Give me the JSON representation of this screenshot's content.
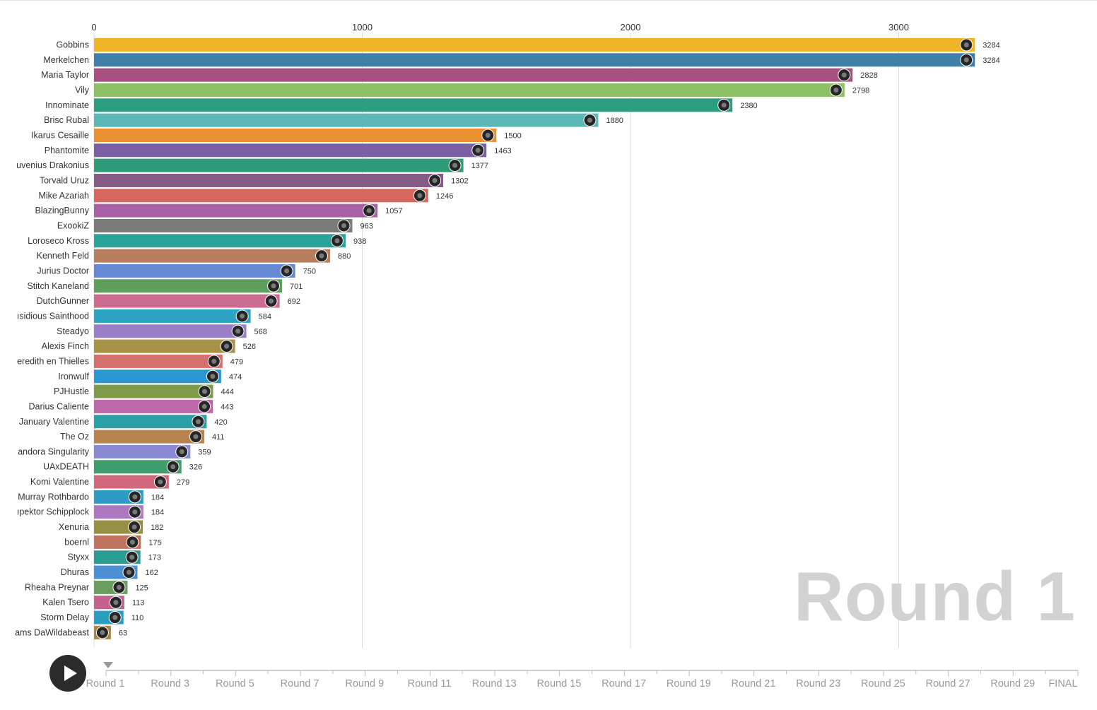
{
  "chart_data": {
    "type": "bar",
    "orientation": "horizontal",
    "x_ticks": [
      0,
      1000,
      2000,
      3000
    ],
    "xlim": [
      0,
      3600
    ],
    "grid": true,
    "current_round": "Round 1",
    "categories": [
      "Gobbins",
      "Merkelchen",
      "Maria Taylor",
      "Vily",
      "Innominate",
      "Brisc Rubal",
      "Ikarus Cesaille",
      "Phantomite",
      "uvenius Drakonius",
      "Torvald Uruz",
      "Mike Azariah",
      "BlazingBunny",
      "ExookiZ",
      "Loroseco Kross",
      "Kenneth Feld",
      "Jurius Doctor",
      "Stitch Kaneland",
      "DutchGunner",
      "ısidious Sainthood",
      "Steadyo",
      "Alexis Finch",
      "eredith en Thielles",
      "Ironwulf",
      "PJHustle",
      "Darius Caliente",
      "January Valentine",
      "The Oz",
      "andora Singularity",
      "UAxDEATH",
      "Komi Valentine",
      "Murray Rothbardo",
      "ıpektor Schipplock",
      "Xenuria",
      "boernl",
      "Styxx",
      "Dhuras",
      "Rheaha Preynar",
      "Kalen Tsero",
      "Storm Delay",
      "ams DaWildabeast"
    ],
    "values": [
      3284,
      3284,
      2828,
      2798,
      2380,
      1880,
      1500,
      1463,
      1377,
      1302,
      1246,
      1057,
      963,
      938,
      880,
      750,
      701,
      692,
      584,
      568,
      526,
      479,
      474,
      444,
      443,
      420,
      411,
      359,
      326,
      279,
      184,
      184,
      182,
      175,
      173,
      162,
      125,
      113,
      110,
      63
    ],
    "colors": [
      "#f0b429",
      "#3f7fa8",
      "#a8507f",
      "#8ec065",
      "#2b9e80",
      "#5bb8b4",
      "#e99030",
      "#7b5ea4",
      "#2e9c78",
      "#865c86",
      "#d7675e",
      "#a95fa5",
      "#7b7b7b",
      "#2aa39a",
      "#b87f5e",
      "#6489d2",
      "#5f9f5c",
      "#cd6c91",
      "#2da3c4",
      "#9b7ec8",
      "#a89246",
      "#d4706e",
      "#2a97d0",
      "#7f9a4b",
      "#be67a9",
      "#2a9fa5",
      "#b7834f",
      "#8989d4",
      "#3f9c6c",
      "#d2687d",
      "#2f9bc4",
      "#ad78c0",
      "#978f42",
      "#c1745d",
      "#2a9c92",
      "#4d8fd3",
      "#6b9d5f",
      "#c4628f",
      "#2b9ebf",
      "#a88744"
    ]
  },
  "timeline": {
    "labels": [
      "Round 1",
      "Round 3",
      "Round 5",
      "Round 7",
      "Round 9",
      "Round 11",
      "Round 13",
      "Round 15",
      "Round 17",
      "Round 19",
      "Round 21",
      "Round 23",
      "Round 25",
      "Round 27",
      "Round 29",
      "FINAL"
    ],
    "current_index": 0,
    "play_icon": "play-icon"
  }
}
